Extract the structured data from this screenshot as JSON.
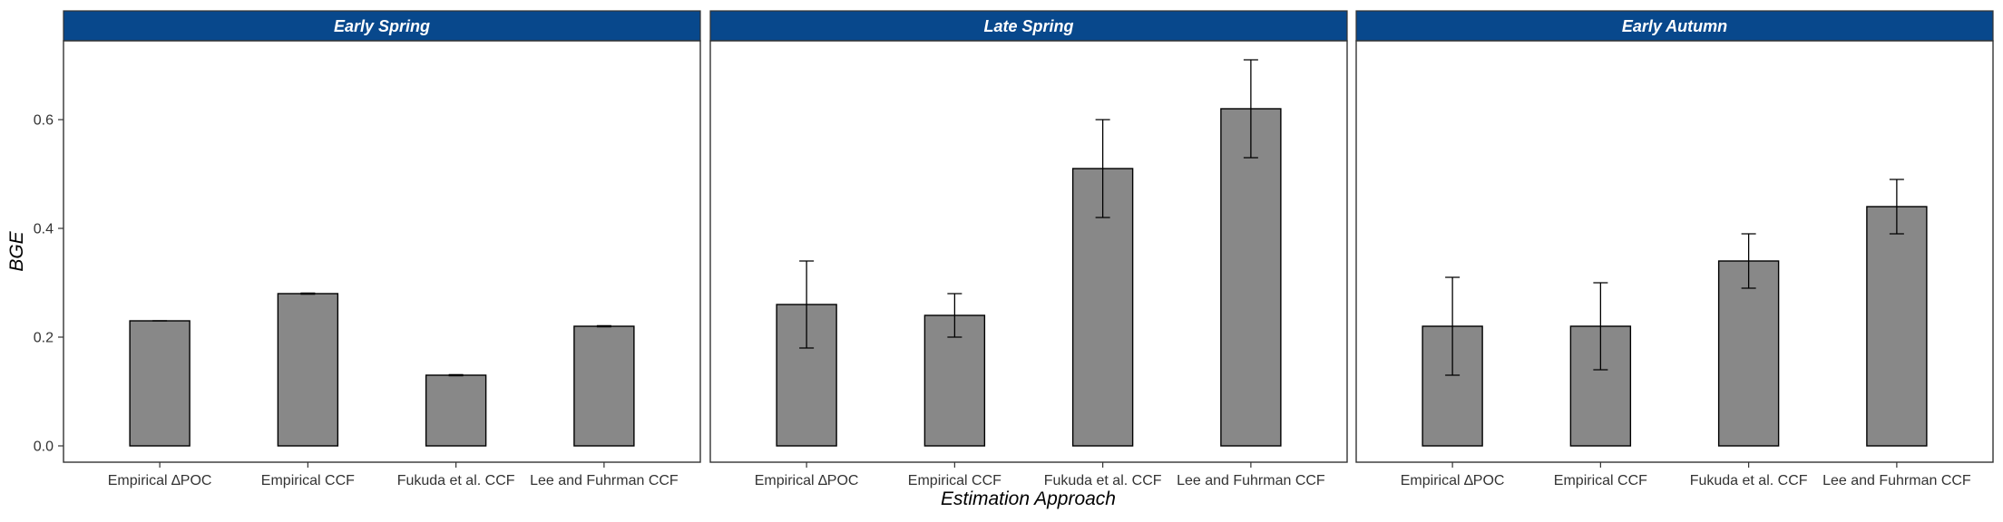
{
  "chart_data": {
    "type": "bar",
    "xlabel": "Estimation Approach",
    "ylabel": "BGE",
    "ylim": [
      -0.03,
      0.745
    ],
    "yticks": [
      0.0,
      0.2,
      0.4,
      0.6
    ],
    "ytick_labels": [
      "0.0",
      "0.2",
      "0.4",
      "0.6"
    ],
    "categories": [
      "Empirical ∆POC",
      "Empirical CCF",
      "Fukuda et al. CCF",
      "Lee and Fuhrman CCF"
    ],
    "grid": false,
    "colors": {
      "bar_fill": "#888888",
      "bar_stroke": "#000000",
      "strip_fill": "#08488C",
      "panel_border": "#333333"
    },
    "panels": [
      {
        "title": "Early Spring",
        "values": [
          0.23,
          0.28,
          0.13,
          0.22
        ],
        "error_low": [
          0.23,
          0.279,
          0.129,
          0.219
        ],
        "error_high": [
          0.23,
          0.281,
          0.131,
          0.221
        ]
      },
      {
        "title": "Late Spring",
        "values": [
          0.26,
          0.24,
          0.51,
          0.62
        ],
        "error_low": [
          0.18,
          0.2,
          0.42,
          0.53
        ],
        "error_high": [
          0.34,
          0.28,
          0.6,
          0.71
        ]
      },
      {
        "title": "Early Autumn",
        "values": [
          0.22,
          0.22,
          0.34,
          0.44
        ],
        "error_low": [
          0.13,
          0.14,
          0.29,
          0.39
        ],
        "error_high": [
          0.31,
          0.3,
          0.39,
          0.49
        ]
      }
    ]
  }
}
